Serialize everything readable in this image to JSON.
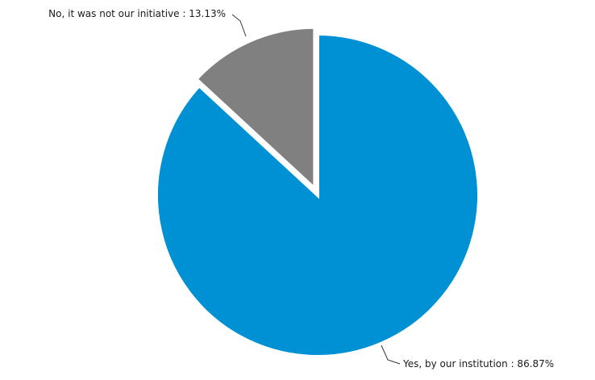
{
  "chart_data": {
    "type": "pie",
    "title": "",
    "start_angle_deg": 0,
    "direction": "clockwise",
    "separator": " : ",
    "slices": [
      {
        "label": "Yes, by our institution",
        "value": 86.87,
        "value_label": "86.87%",
        "color": "#0090d4"
      },
      {
        "label": "No, it was not our initiative",
        "value": 13.13,
        "value_label": "13.13%",
        "color": "#808080",
        "exploded": true
      }
    ],
    "legend": "none",
    "labels": "outside-with-leader-lines"
  }
}
